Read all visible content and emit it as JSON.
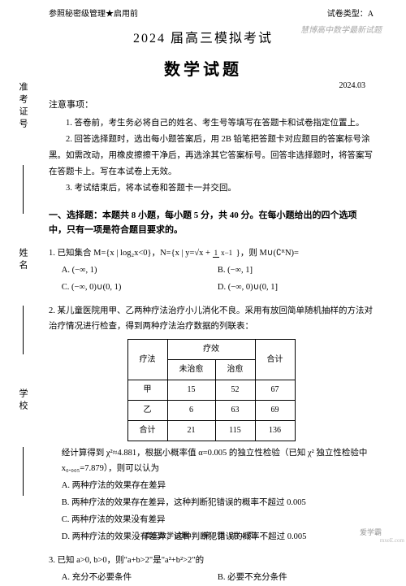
{
  "header": {
    "classification": "参照秘密级管理★启用前",
    "paper_type": "试卷类型：A"
  },
  "titles": {
    "main": "2024 届高三模拟考试",
    "subject": "数学试题",
    "date": "2024.03"
  },
  "notice": {
    "title": "注意事项：",
    "item1": "1. 答卷前，考生务必将自己的姓名、考生号等填写在答题卡和试卷指定位置上。",
    "item2": "2. 回答选择题时，选出每小题答案后，用 2B 铅笔把答题卡对应题目的答案标号涂黑。如需改动，用橡皮擦擦干净后，再选涂其它答案标号。回答非选择题时，将答案写在答题卡上。写在本试卷上无效。",
    "item3": "3. 考试结束后，将本试卷和答题卡一并交回。"
  },
  "section1_title": "一、选择题：本题共 8 小题，每小题 5 分，共 40 分。在每小题给出的四个选项中，只有一项是符合题目要求的。",
  "q1": {
    "text_pre": "1. 已知集合 M={x | log₂x<0}，N={x | y=√x + ",
    "text_post": " }，则 M∪(∁ᴿN)=",
    "optA": "A. (−∞, 1)",
    "optB": "B. (−∞, 1]",
    "optC": "C. (−∞, 0)∪(0, 1)",
    "optD": "D. (−∞, 0)∪(0, 1]"
  },
  "q2": {
    "text": "2. 某儿童医院用甲、乙两种疗法治疗小儿消化不良。采用有放回简单随机抽样的方法对治疗情况进行检查，得到两种疗法治疗数据的列联表：",
    "table": {
      "headers": {
        "therapy": "疗法",
        "effect": "疗效",
        "not_cured": "未治愈",
        "cured": "治愈",
        "total": "合计"
      },
      "rows": {
        "r1": {
          "label": "甲",
          "c1": "15",
          "c2": "52",
          "c3": "67"
        },
        "r2": {
          "label": "乙",
          "c1": "6",
          "c2": "63",
          "c3": "69"
        },
        "r3": {
          "label": "合计",
          "c1": "21",
          "c2": "115",
          "c3": "136"
        }
      }
    },
    "after": "经计算得到 χ²≈4.881，根据小概率值 α=0.005 的独立性检验（已知 χ² 独立性检验中 x₀.₀₀₅=7.879），则可以认为",
    "optA": "A. 两种疗法的效果存在差异",
    "optB": "B. 两种疗法的效果存在差异，这种判断犯错误的概率不超过 0.005",
    "optC": "C. 两种疗法的效果没有差异",
    "optD": "D. 两种疗法的效果没有差异，这种判断犯错误的概率不超过 0.005"
  },
  "q3": {
    "text": "3. 已知 a>0, b>0，则\"a+b>2\"是\"a²+b²>2\"的",
    "optA": "A. 充分不必要条件",
    "optB": "B. 必要不充分条件"
  },
  "footer": "高三数学试题　　第 1 页（共 4 页）",
  "sidebar": {
    "label1": "准考证号",
    "label2": "姓名",
    "label3": "学校"
  },
  "watermarks": {
    "w1": "爱学霸",
    "w2": "慧博高中数学最新试题",
    "corner": "mxeE.com"
  },
  "frac": {
    "num": "1",
    "den": "x−1"
  }
}
